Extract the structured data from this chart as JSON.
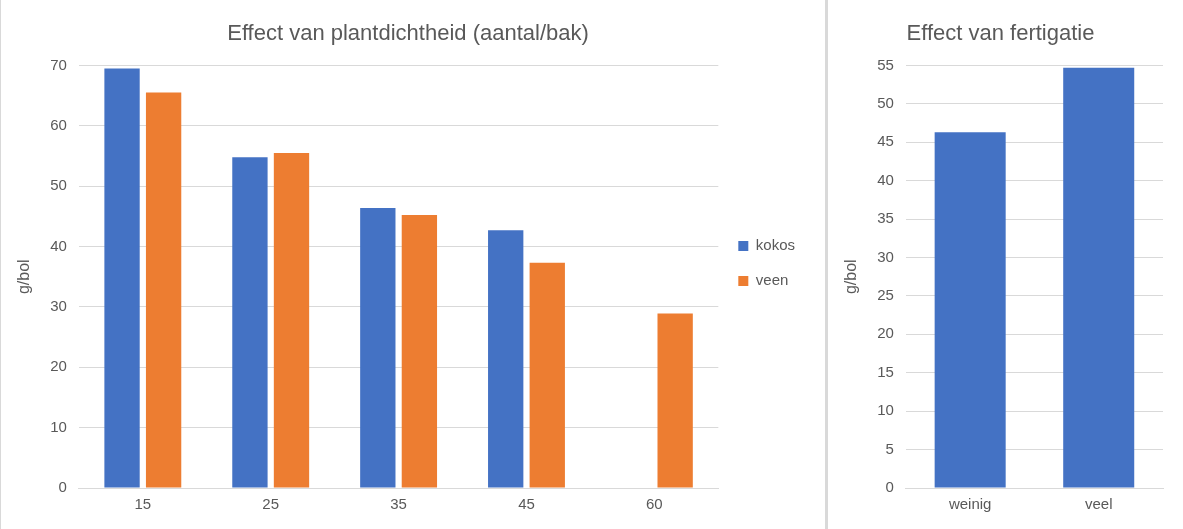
{
  "chart_data": [
    {
      "type": "bar",
      "title": "Effect van plantdichtheid (aantal/bak)",
      "ylabel": "g/bol",
      "categories": [
        "15",
        "25",
        "35",
        "45",
        "60"
      ],
      "series": [
        {
          "name": "kokos",
          "color": "#4472c4",
          "values": [
            69.5,
            54.8,
            46.4,
            42.7,
            null
          ]
        },
        {
          "name": "veen",
          "color": "#ed7d31",
          "values": [
            65.5,
            55.5,
            45.2,
            37.3,
            28.9
          ]
        }
      ],
      "ylim": [
        0,
        70
      ],
      "yticks": [
        0,
        10,
        20,
        30,
        40,
        50,
        60,
        70
      ],
      "grid": "y",
      "legend": "right"
    },
    {
      "type": "bar",
      "title": "Effect van fertigatie",
      "ylabel": "g/bol",
      "categories": [
        "weinig",
        "veel"
      ],
      "values": [
        46.3,
        54.7
      ],
      "color": "#4472c4",
      "ylim": [
        0,
        55
      ],
      "yticks": [
        0,
        5,
        10,
        15,
        20,
        25,
        30,
        35,
        40,
        45,
        50,
        55
      ],
      "grid": "y"
    }
  ]
}
